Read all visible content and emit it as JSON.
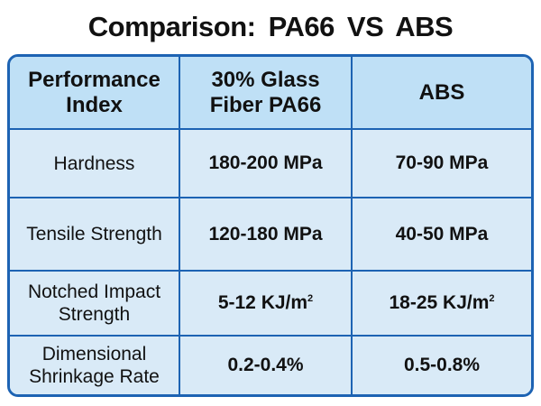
{
  "title": "Comparison: PA66  VS  ABS",
  "table": {
    "headers": [
      "Performance Index",
      "30% Glass Fiber PA66",
      "ABS"
    ],
    "rows": [
      {
        "property": "Hardness",
        "pa66": "180-200 MPa",
        "abs": "70-90 MPa"
      },
      {
        "property": "Tensile Strength",
        "pa66": "120-180 MPa",
        "abs": "40-50 MPa"
      },
      {
        "property": "Notched Impact Strength",
        "pa66": "5-12 KJ/m",
        "abs": "18-25 KJ/m",
        "unit_superscript": "2"
      },
      {
        "property": "Dimensional Shrinkage Rate",
        "pa66": "0.2-0.4%",
        "abs": "0.5-0.8%"
      }
    ]
  },
  "colors": {
    "border": "#1d63b3",
    "header_bg": "#bfe0f6",
    "row_bg": "#d9eaf7"
  }
}
